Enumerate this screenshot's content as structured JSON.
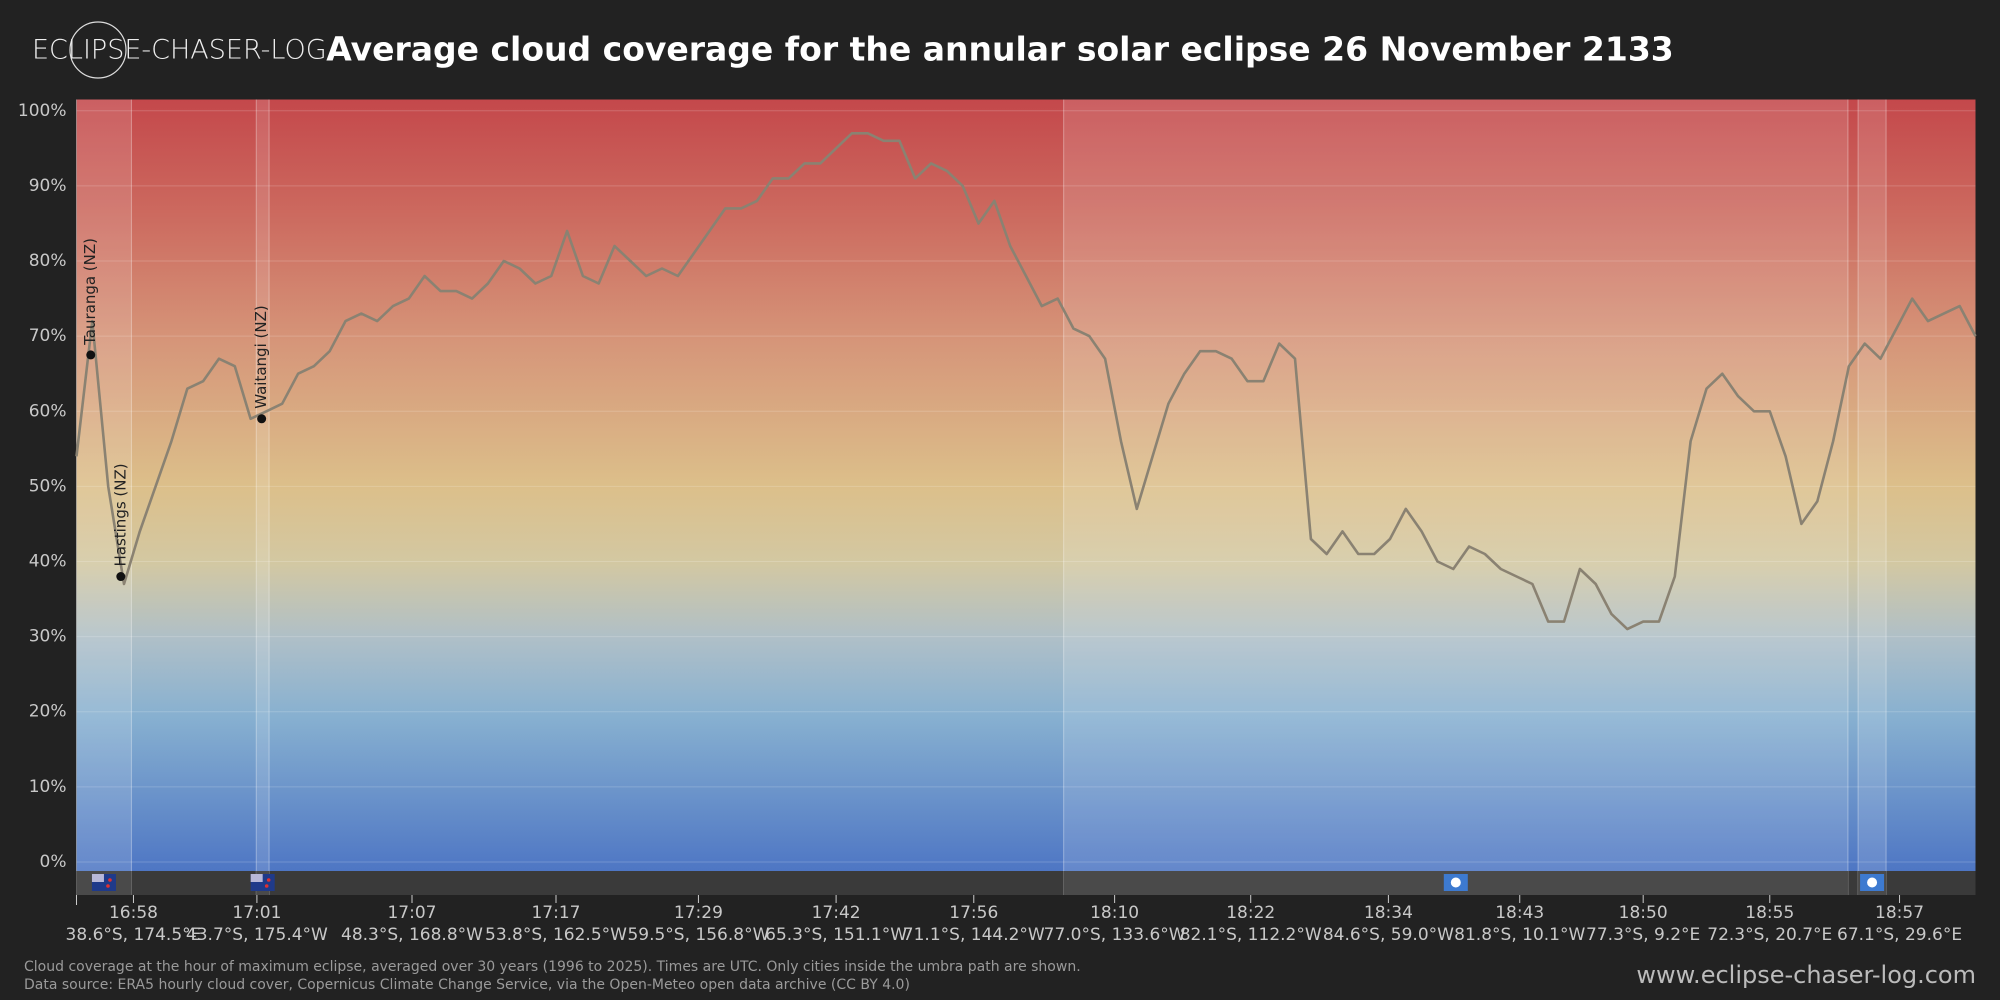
{
  "chart_data": {
    "type": "line",
    "title": "Average cloud coverage for the annular solar eclipse 26 November 2133",
    "logo": "ECLIPSE-CHASER-LOG",
    "footnote": [
      "Cloud coverage at the hour of maximum eclipse, averaged over 30 years (1996 to 2025). Times are UTC. Only cities inside the umbra path are shown.",
      "Data source: ERA5 hourly cloud cover, Copernicus Climate Change Service, via the Open-Meteo open data archive (CC BY 4.0)"
    ],
    "website": "www.eclipse-chaser-log.com",
    "color": "#8a8272",
    "grid": true,
    "xlim": [
      0,
      120
    ],
    "ylim": [
      -1.2,
      101.5
    ],
    "yticks": [
      {
        "value": 0,
        "label": "0%"
      },
      {
        "value": 10,
        "label": "10%"
      },
      {
        "value": 20,
        "label": "20%"
      },
      {
        "value": 30,
        "label": "30%"
      },
      {
        "value": 40,
        "label": "40%"
      },
      {
        "value": 50,
        "label": "50%"
      },
      {
        "value": 60,
        "label": "60%"
      },
      {
        "value": 70,
        "label": "70%"
      },
      {
        "value": 80,
        "label": "80%"
      },
      {
        "value": 90,
        "label": "90%"
      },
      {
        "value": 100,
        "label": "100%"
      }
    ],
    "xticks": [
      {
        "value": 3.6,
        "label": "16:58"
      },
      {
        "value": 11.4,
        "label": "17:01"
      },
      {
        "value": 21.2,
        "label": "17:07"
      },
      {
        "value": 30.3,
        "label": "17:17"
      },
      {
        "value": 39.3,
        "label": "17:29"
      },
      {
        "value": 48.0,
        "label": "17:42"
      },
      {
        "value": 56.7,
        "label": "17:56"
      },
      {
        "value": 65.6,
        "label": "18:10"
      },
      {
        "value": 74.2,
        "label": "18:22"
      },
      {
        "value": 82.9,
        "label": "18:34"
      },
      {
        "value": 91.2,
        "label": "18:43"
      },
      {
        "value": 99.0,
        "label": "18:50"
      },
      {
        "value": 107.0,
        "label": "18:55"
      },
      {
        "value": 115.2,
        "label": "18:57"
      }
    ],
    "xtick_coords": [
      "38.6°S, 174.5°E",
      "43.7°S, 175.4°W",
      "48.3°S, 168.8°W",
      "53.8°S, 162.5°W",
      "59.5°S, 156.8°W",
      "65.3°S, 151.1°W",
      "71.1°S, 144.2°W",
      "77.0°S, 133.6°W",
      "82.1°S, 112.2°W",
      "84.6°S, 59.0°W",
      "81.8°S, 10.1°W",
      "77.3°S, 9.2°E",
      "72.3°S, 20.7°E",
      "67.1°S, 29.6°E"
    ],
    "regions": [
      [
        0,
        3.47
      ],
      [
        11.36,
        12.17
      ],
      [
        62.38,
        111.94
      ],
      [
        112.58,
        114.35
      ]
    ],
    "annotations": [
      {
        "label": "Tauranga (NZ)",
        "x": 0.9,
        "y": 67.5
      },
      {
        "label": "Hastings (NZ)",
        "x": 2.8,
        "y": 38
      },
      {
        "label": "Waitangi (NZ)",
        "x": 11.7,
        "y": 59
      }
    ],
    "values": [
      54,
      72,
      50,
      37,
      44,
      50,
      56,
      63,
      64,
      67,
      66,
      59,
      60,
      61,
      65,
      66,
      68,
      72,
      73,
      72,
      74,
      75,
      78,
      76,
      76,
      75,
      77,
      80,
      79,
      77,
      78,
      84,
      78,
      77,
      82,
      80,
      78,
      79,
      78,
      81,
      84,
      87,
      87,
      88,
      91,
      91,
      93,
      93,
      95,
      97,
      97,
      96,
      96,
      91,
      93,
      92,
      90,
      85,
      88,
      82,
      78,
      74,
      75,
      71,
      70,
      67,
      56,
      47,
      54,
      61,
      65,
      68,
      68,
      67,
      64,
      64,
      69,
      67,
      43,
      41,
      44,
      41,
      41,
      43,
      47,
      44,
      40,
      39,
      42,
      41,
      39,
      38,
      37,
      32,
      32,
      39,
      37,
      33,
      31,
      32,
      32,
      38,
      56,
      63,
      65,
      62,
      60,
      60,
      54,
      45,
      48,
      56,
      66,
      69,
      67,
      71,
      75,
      72,
      73,
      74,
      70
    ]
  }
}
